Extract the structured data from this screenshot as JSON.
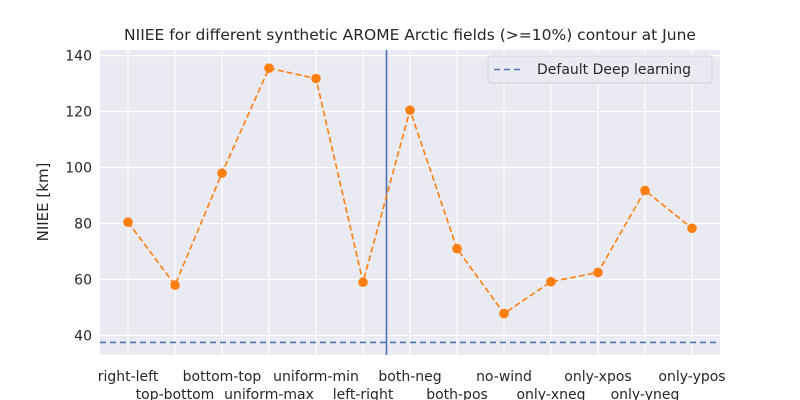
{
  "chart_data": {
    "type": "line",
    "title": "NIIEE for different synthetic AROME Arctic fields (>=10%) contour at June",
    "xlabel": "",
    "ylabel": "NIIEE [km]",
    "categories": [
      "right-left",
      "top-bottom",
      "bottom-top",
      "uniform-max",
      "uniform-min",
      "left-right",
      "both-neg",
      "both-pos",
      "no-wind",
      "only-xneg",
      "only-xpos",
      "only-yneg",
      "only-ypos"
    ],
    "series": [
      {
        "values": [
          80.5,
          58.0,
          98.0,
          135.5,
          131.8,
          59.0,
          120.5,
          71.0,
          47.8,
          59.2,
          62.5,
          91.8,
          78.3
        ],
        "color": "#ff7f0e",
        "style": "dashed",
        "marker": "circle"
      }
    ],
    "reference_lines": [
      {
        "name": "Default Deep learning",
        "orientation": "horizontal",
        "value": 37.5,
        "color": "#4c72b0",
        "style": "dashed"
      },
      {
        "orientation": "vertical",
        "category": "both-neg",
        "offset": -0.5,
        "color": "#4c72b0",
        "style": "solid"
      }
    ],
    "yticks": [
      40,
      60,
      80,
      100,
      120,
      140
    ],
    "ylim": [
      33,
      142
    ],
    "grid": true,
    "legend": "upper right",
    "background": "#eaeaf2"
  }
}
